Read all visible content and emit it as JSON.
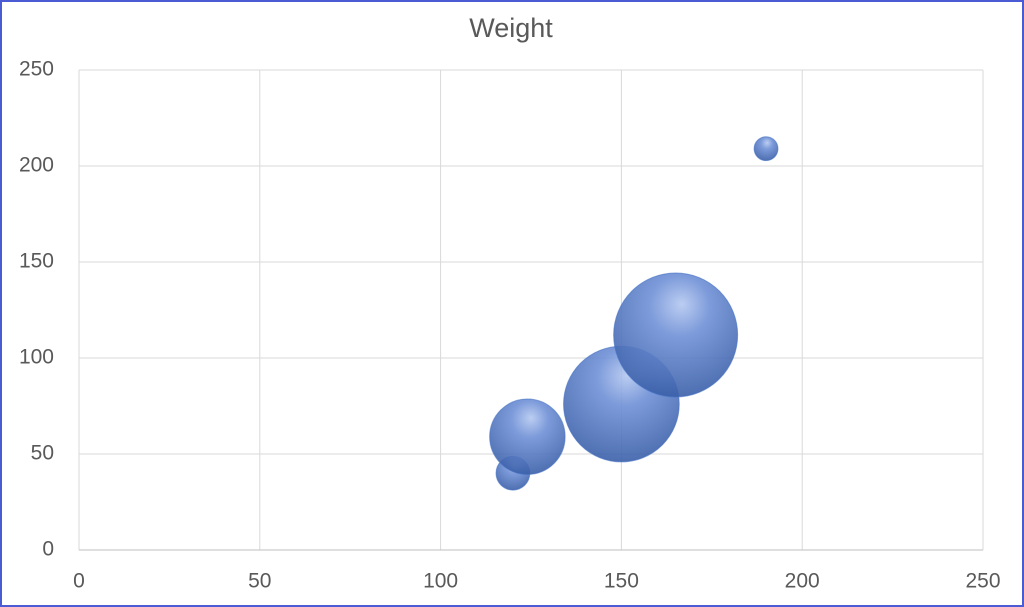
{
  "chart_data": {
    "type": "bubble",
    "title": "Weight",
    "x": [
      120,
      124,
      150,
      165,
      190
    ],
    "values": [
      40,
      59,
      76,
      112,
      209
    ],
    "sizes": [
      20,
      100,
      235,
      270,
      10
    ],
    "color": "#4472c4",
    "xlim": [
      0,
      250
    ],
    "xticks": [
      0,
      50,
      100,
      150,
      200,
      250
    ],
    "ylim": [
      0,
      250
    ],
    "yticks": [
      0,
      50,
      100,
      150,
      200,
      250
    ],
    "grid": true
  }
}
